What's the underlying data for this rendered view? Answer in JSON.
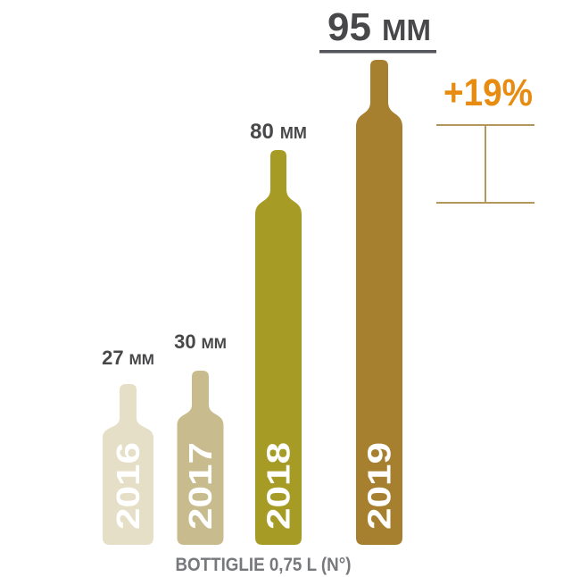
{
  "chart_data": {
    "type": "bar",
    "title": "",
    "subtitle": "",
    "categories": [
      "2016",
      "2017",
      "2018",
      "2019"
    ],
    "values": [
      27,
      30,
      80,
      95
    ],
    "unit": "MM",
    "value_labels": [
      "27 MM",
      "30 MM",
      "80 MM",
      "95 MM"
    ],
    "xlabel": "BOTTIGLIE 0,75 L (N°)",
    "ylabel": "",
    "bar_colors": [
      "#e5dfc7",
      "#c8bc8e",
      "#a69b24",
      "#a7802f"
    ],
    "bar_style": "wine-bottle-silhouette",
    "legend": "none",
    "grid": false,
    "annotation": {
      "text": "+19%",
      "meaning": "growth from 2018 to 2019",
      "color": "#e78c10"
    },
    "highlighted_category": "2019"
  },
  "colors": {
    "background": "#ffffff",
    "value_label_gray": "#48484a",
    "underline_gray": "#54555a",
    "caption_gray": "#77787c",
    "bracket_gold": "#b3985c",
    "year_text_white": "#ffffff",
    "annotation_orange": "#e78c10"
  }
}
